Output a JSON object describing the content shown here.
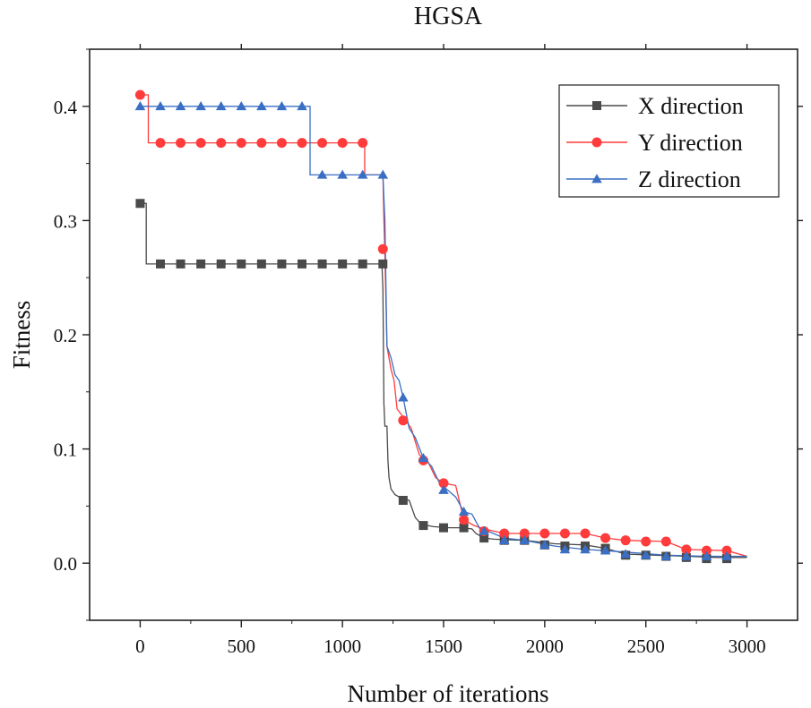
{
  "chart_data": {
    "type": "line",
    "title": "HGSA",
    "xlabel": "Number of iterations",
    "ylabel": "Fitness",
    "xlim": [
      -250,
      3250
    ],
    "ylim": [
      -0.05,
      0.45
    ],
    "xticks": [
      0,
      500,
      1000,
      1500,
      2000,
      2500,
      3000
    ],
    "yticks": [
      0.0,
      0.1,
      0.2,
      0.3,
      0.4
    ],
    "xtick_labels": [
      "0",
      "500",
      "1000",
      "1500",
      "2000",
      "2500",
      "3000"
    ],
    "ytick_labels": [
      "0.0",
      "0.1",
      "0.2",
      "0.3",
      "0.4"
    ],
    "grid": false,
    "legend_position": "top-right",
    "series": [
      {
        "name": "X direction",
        "color": "#4a4a4a",
        "marker": "square",
        "line": [
          [
            0,
            0.315
          ],
          [
            30,
            0.315
          ],
          [
            30,
            0.262
          ],
          [
            1190,
            0.262
          ],
          [
            1195,
            0.262
          ],
          [
            1200,
            0.24
          ],
          [
            1205,
            0.14
          ],
          [
            1210,
            0.12
          ],
          [
            1220,
            0.12
          ],
          [
            1225,
            0.09
          ],
          [
            1230,
            0.075
          ],
          [
            1240,
            0.065
          ],
          [
            1260,
            0.06
          ],
          [
            1280,
            0.058
          ],
          [
            1300,
            0.056
          ],
          [
            1330,
            0.055
          ],
          [
            1360,
            0.04
          ],
          [
            1390,
            0.034
          ],
          [
            1450,
            0.032
          ],
          [
            1530,
            0.031
          ],
          [
            1580,
            0.031
          ],
          [
            1640,
            0.03
          ],
          [
            1660,
            0.026
          ],
          [
            1700,
            0.022
          ],
          [
            1750,
            0.021
          ],
          [
            1900,
            0.02
          ],
          [
            2050,
            0.017
          ],
          [
            2200,
            0.016
          ],
          [
            2300,
            0.013
          ],
          [
            2400,
            0.008
          ],
          [
            2550,
            0.007
          ],
          [
            2700,
            0.006
          ],
          [
            2850,
            0.005
          ],
          [
            3000,
            0.005
          ]
        ],
        "markers": [
          [
            0,
            0.315
          ],
          [
            100,
            0.262
          ],
          [
            200,
            0.262
          ],
          [
            300,
            0.262
          ],
          [
            400,
            0.262
          ],
          [
            500,
            0.262
          ],
          [
            600,
            0.262
          ],
          [
            700,
            0.262
          ],
          [
            800,
            0.262
          ],
          [
            900,
            0.262
          ],
          [
            1000,
            0.262
          ],
          [
            1100,
            0.262
          ],
          [
            1200,
            0.262
          ],
          [
            1300,
            0.055
          ],
          [
            1400,
            0.033
          ],
          [
            1500,
            0.031
          ],
          [
            1600,
            0.031
          ],
          [
            1700,
            0.022
          ],
          [
            1800,
            0.02
          ],
          [
            1900,
            0.02
          ],
          [
            2000,
            0.016
          ],
          [
            2100,
            0.015
          ],
          [
            2200,
            0.015
          ],
          [
            2300,
            0.013
          ],
          [
            2400,
            0.007
          ],
          [
            2500,
            0.007
          ],
          [
            2600,
            0.006
          ],
          [
            2700,
            0.005
          ],
          [
            2800,
            0.004
          ],
          [
            2900,
            0.004
          ]
        ]
      },
      {
        "name": "Y direction",
        "color": "#ff3b3b",
        "marker": "circle",
        "line": [
          [
            0,
            0.41
          ],
          [
            40,
            0.41
          ],
          [
            40,
            0.368
          ],
          [
            1110,
            0.368
          ],
          [
            1110,
            0.34
          ],
          [
            1200,
            0.34
          ],
          [
            1205,
            0.3
          ],
          [
            1210,
            0.27
          ],
          [
            1220,
            0.19
          ],
          [
            1240,
            0.17
          ],
          [
            1255,
            0.16
          ],
          [
            1270,
            0.135
          ],
          [
            1300,
            0.128
          ],
          [
            1340,
            0.118
          ],
          [
            1380,
            0.095
          ],
          [
            1420,
            0.09
          ],
          [
            1460,
            0.075
          ],
          [
            1500,
            0.07
          ],
          [
            1560,
            0.068
          ],
          [
            1600,
            0.038
          ],
          [
            1650,
            0.033
          ],
          [
            1700,
            0.03
          ],
          [
            1800,
            0.026
          ],
          [
            2000,
            0.026
          ],
          [
            2200,
            0.026
          ],
          [
            2300,
            0.022
          ],
          [
            2400,
            0.02
          ],
          [
            2600,
            0.019
          ],
          [
            2700,
            0.012
          ],
          [
            2900,
            0.011
          ],
          [
            3000,
            0.006
          ]
        ],
        "markers": [
          [
            0,
            0.41
          ],
          [
            100,
            0.368
          ],
          [
            200,
            0.368
          ],
          [
            300,
            0.368
          ],
          [
            400,
            0.368
          ],
          [
            500,
            0.368
          ],
          [
            600,
            0.368
          ],
          [
            700,
            0.368
          ],
          [
            800,
            0.368
          ],
          [
            900,
            0.368
          ],
          [
            1000,
            0.368
          ],
          [
            1100,
            0.368
          ],
          [
            1200,
            0.275
          ],
          [
            1300,
            0.125
          ],
          [
            1400,
            0.09
          ],
          [
            1500,
            0.07
          ],
          [
            1600,
            0.038
          ],
          [
            1700,
            0.028
          ],
          [
            1800,
            0.026
          ],
          [
            1900,
            0.026
          ],
          [
            2000,
            0.026
          ],
          [
            2100,
            0.026
          ],
          [
            2200,
            0.026
          ],
          [
            2300,
            0.022
          ],
          [
            2400,
            0.02
          ],
          [
            2500,
            0.019
          ],
          [
            2600,
            0.019
          ],
          [
            2700,
            0.012
          ],
          [
            2800,
            0.011
          ],
          [
            2900,
            0.011
          ]
        ]
      },
      {
        "name": "Z direction",
        "color": "#3a6fc4",
        "marker": "triangle",
        "line": [
          [
            0,
            0.4
          ],
          [
            840,
            0.4
          ],
          [
            840,
            0.34
          ],
          [
            1200,
            0.34
          ],
          [
            1210,
            0.3
          ],
          [
            1220,
            0.19
          ],
          [
            1240,
            0.18
          ],
          [
            1260,
            0.165
          ],
          [
            1280,
            0.16
          ],
          [
            1300,
            0.145
          ],
          [
            1330,
            0.118
          ],
          [
            1360,
            0.11
          ],
          [
            1400,
            0.092
          ],
          [
            1440,
            0.085
          ],
          [
            1480,
            0.07
          ],
          [
            1520,
            0.064
          ],
          [
            1560,
            0.058
          ],
          [
            1600,
            0.045
          ],
          [
            1640,
            0.043
          ],
          [
            1680,
            0.03
          ],
          [
            1720,
            0.028
          ],
          [
            1800,
            0.022
          ],
          [
            1900,
            0.02
          ],
          [
            2050,
            0.015
          ],
          [
            2200,
            0.012
          ],
          [
            2300,
            0.011
          ],
          [
            2450,
            0.009
          ],
          [
            2600,
            0.007
          ],
          [
            2800,
            0.006
          ],
          [
            3000,
            0.006
          ]
        ],
        "markers": [
          [
            0,
            0.4
          ],
          [
            100,
            0.4
          ],
          [
            200,
            0.4
          ],
          [
            300,
            0.4
          ],
          [
            400,
            0.4
          ],
          [
            500,
            0.4
          ],
          [
            600,
            0.4
          ],
          [
            700,
            0.4
          ],
          [
            800,
            0.4
          ],
          [
            900,
            0.34
          ],
          [
            1000,
            0.34
          ],
          [
            1100,
            0.34
          ],
          [
            1200,
            0.34
          ],
          [
            1300,
            0.145
          ],
          [
            1400,
            0.092
          ],
          [
            1500,
            0.064
          ],
          [
            1600,
            0.045
          ],
          [
            1700,
            0.028
          ],
          [
            1800,
            0.02
          ],
          [
            1900,
            0.02
          ],
          [
            2000,
            0.016
          ],
          [
            2100,
            0.012
          ],
          [
            2200,
            0.012
          ],
          [
            2300,
            0.011
          ],
          [
            2400,
            0.008
          ],
          [
            2500,
            0.007
          ],
          [
            2600,
            0.006
          ],
          [
            2700,
            0.006
          ],
          [
            2800,
            0.006
          ],
          [
            2900,
            0.006
          ]
        ]
      }
    ]
  }
}
